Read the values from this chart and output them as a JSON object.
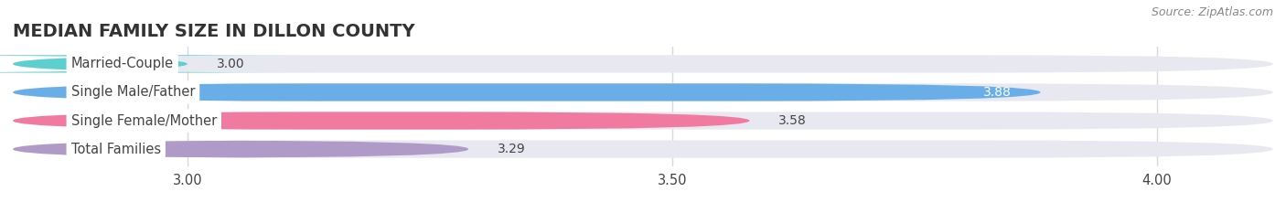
{
  "title": "MEDIAN FAMILY SIZE IN DILLON COUNTY",
  "source": "Source: ZipAtlas.com",
  "categories": [
    "Married-Couple",
    "Single Male/Father",
    "Single Female/Mother",
    "Total Families"
  ],
  "values": [
    3.0,
    3.88,
    3.58,
    3.29
  ],
  "bar_colors": [
    "#5ecfcf",
    "#6aaee8",
    "#f07aa0",
    "#b09ac8"
  ],
  "bar_bg_color": "#e8e8f0",
  "xlim_min": 2.82,
  "xlim_max": 4.12,
  "xticks": [
    3.0,
    3.5,
    4.0
  ],
  "xtick_labels": [
    "3.00",
    "3.50",
    "4.00"
  ],
  "bar_height": 0.62,
  "label_fontsize": 10.5,
  "title_fontsize": 14,
  "value_fontsize": 10,
  "source_fontsize": 9,
  "background_color": "#ffffff",
  "grid_color": "#d8d8e0",
  "text_color": "#444444",
  "source_color": "#888888"
}
